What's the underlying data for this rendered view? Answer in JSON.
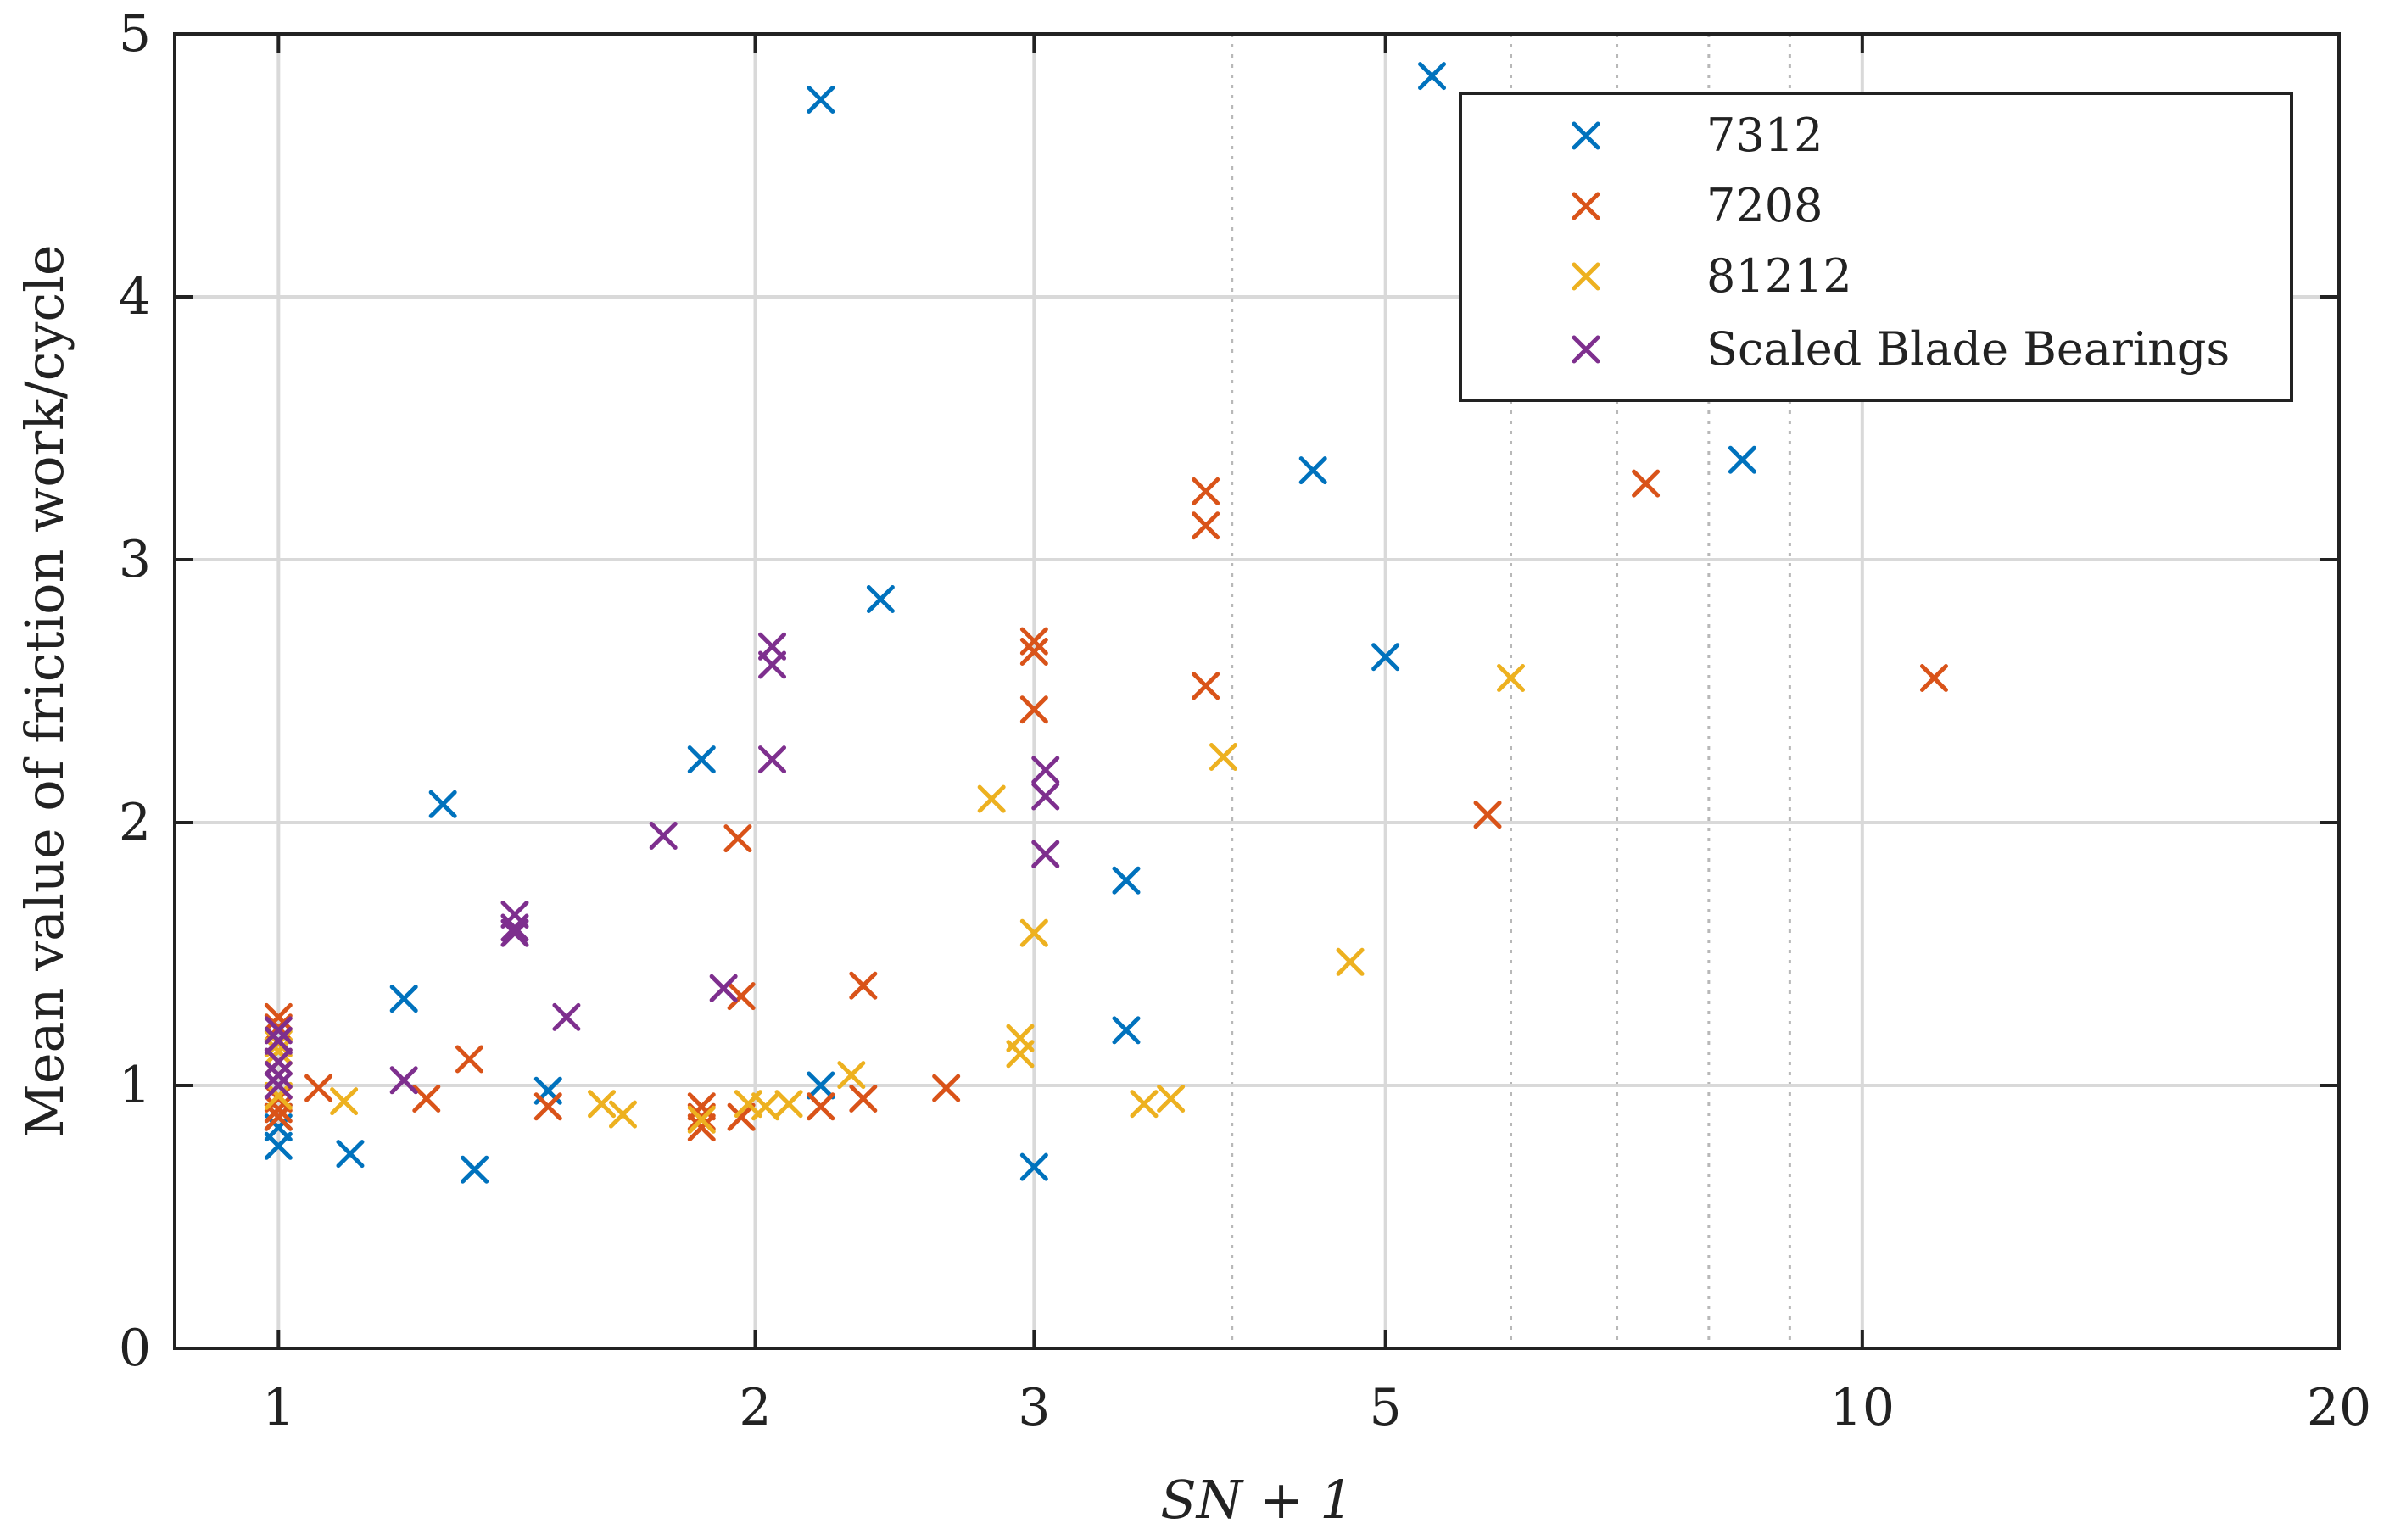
{
  "chart_data": {
    "type": "scatter",
    "title": "",
    "xlabel": "SN + 1",
    "ylabel": "Mean value of friction work/cycle",
    "xscale": "log",
    "xlim": [
      0.86,
      20
    ],
    "ylim": [
      0,
      5
    ],
    "xticks": [
      1,
      2,
      3,
      5,
      10,
      20
    ],
    "xtick_labels": [
      "1",
      "2",
      "3",
      "5",
      "10",
      "20"
    ],
    "xminor_dotted": [
      4,
      6,
      7,
      8,
      9
    ],
    "yticks": [
      0,
      1,
      2,
      3,
      4,
      5
    ],
    "ytick_labels": [
      "0",
      "1",
      "2",
      "3",
      "4",
      "5"
    ],
    "grid": true,
    "marker": "x",
    "legend_position": "top-right",
    "series": [
      {
        "name": "7312",
        "color": "#0072BD",
        "points": [
          [
            1.0,
            0.77
          ],
          [
            1.0,
            0.84
          ],
          [
            1.0,
            0.88
          ],
          [
            1.11,
            0.74
          ],
          [
            1.2,
            1.33
          ],
          [
            1.27,
            2.07
          ],
          [
            1.33,
            0.68
          ],
          [
            1.48,
            0.98
          ],
          [
            1.85,
            2.24
          ],
          [
            2.2,
            4.75
          ],
          [
            2.2,
            1.0
          ],
          [
            2.4,
            2.85
          ],
          [
            3.0,
            0.69
          ],
          [
            3.43,
            1.78
          ],
          [
            3.43,
            1.21
          ],
          [
            4.5,
            3.34
          ],
          [
            5.0,
            2.63
          ],
          [
            5.35,
            4.84
          ],
          [
            8.4,
            3.38
          ]
        ]
      },
      {
        "name": "7208",
        "color": "#D95319",
        "points": [
          [
            1.0,
            0.88
          ],
          [
            1.0,
            0.91
          ],
          [
            1.0,
            0.95
          ],
          [
            1.0,
            1.22
          ],
          [
            1.0,
            1.26
          ],
          [
            1.06,
            0.99
          ],
          [
            1.24,
            0.95
          ],
          [
            1.32,
            1.1
          ],
          [
            1.48,
            0.92
          ],
          [
            1.85,
            0.84
          ],
          [
            1.85,
            0.88
          ],
          [
            1.85,
            0.92
          ],
          [
            1.95,
            1.94
          ],
          [
            1.96,
            1.34
          ],
          [
            1.96,
            0.88
          ],
          [
            2.2,
            0.92
          ],
          [
            2.34,
            0.95
          ],
          [
            2.34,
            1.38
          ],
          [
            2.64,
            0.99
          ],
          [
            3.0,
            2.65
          ],
          [
            3.0,
            2.69
          ],
          [
            3.0,
            2.43
          ],
          [
            3.85,
            3.13
          ],
          [
            3.85,
            3.26
          ],
          [
            3.85,
            2.52
          ],
          [
            5.8,
            2.03
          ],
          [
            7.3,
            3.29
          ],
          [
            11.1,
            2.55
          ]
        ]
      },
      {
        "name": "81212",
        "color": "#EDB120",
        "points": [
          [
            1.0,
            0.96
          ],
          [
            1.0,
            1.04
          ],
          [
            1.0,
            1.09
          ],
          [
            1.0,
            1.13
          ],
          [
            1.0,
            1.16
          ],
          [
            1.1,
            0.94
          ],
          [
            1.6,
            0.93
          ],
          [
            1.65,
            0.89
          ],
          [
            1.85,
            0.87
          ],
          [
            1.98,
            0.93
          ],
          [
            2.03,
            0.92
          ],
          [
            2.1,
            0.93
          ],
          [
            2.3,
            1.04
          ],
          [
            2.82,
            2.09
          ],
          [
            2.94,
            1.18
          ],
          [
            2.94,
            1.12
          ],
          [
            3.0,
            1.58
          ],
          [
            3.52,
            0.93
          ],
          [
            3.66,
            0.95
          ],
          [
            3.95,
            2.25
          ],
          [
            4.75,
            1.47
          ],
          [
            6.0,
            2.55
          ]
        ]
      },
      {
        "name": "Scaled Blade Bearings",
        "color": "#7E2F8E",
        "points": [
          [
            1.0,
            1.0
          ],
          [
            1.0,
            1.04
          ],
          [
            1.0,
            1.09
          ],
          [
            1.0,
            1.17
          ],
          [
            1.0,
            1.21
          ],
          [
            1.2,
            1.02
          ],
          [
            1.41,
            1.65
          ],
          [
            1.41,
            1.58
          ],
          [
            1.41,
            1.6
          ],
          [
            1.52,
            1.26
          ],
          [
            1.75,
            1.95
          ],
          [
            1.91,
            1.37
          ],
          [
            2.05,
            2.67
          ],
          [
            2.05,
            2.6
          ],
          [
            2.05,
            2.24
          ],
          [
            3.05,
            2.2
          ],
          [
            3.05,
            2.1
          ],
          [
            3.05,
            1.88
          ]
        ]
      }
    ]
  }
}
